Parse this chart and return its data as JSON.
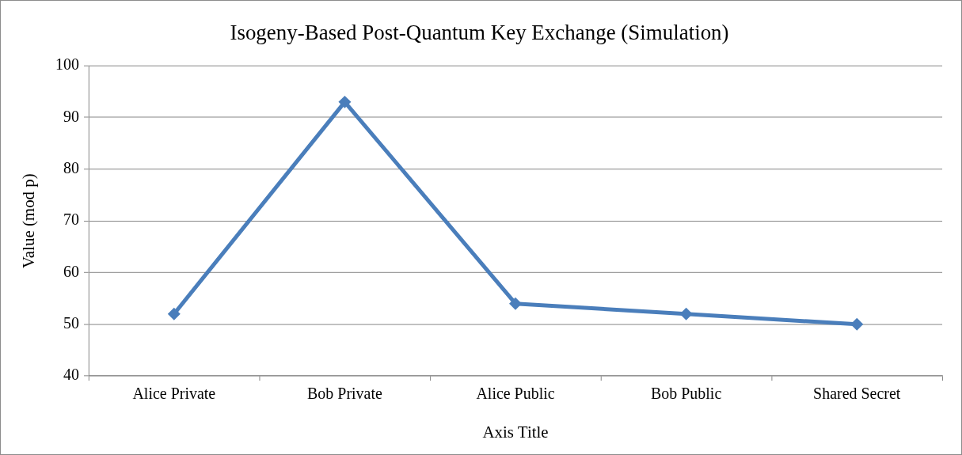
{
  "chart_data": {
    "type": "line",
    "title": "Isogeny-Based Post-Quantum Key Exchange (Simulation)",
    "xlabel": "Axis Title",
    "ylabel": "Value (mod p)",
    "categories": [
      "Alice Private",
      "Bob Private",
      "Alice Public",
      "Bob Public",
      "Shared Secret"
    ],
    "series": [
      {
        "color": "#4a7ebb",
        "values": [
          52,
          93,
          54,
          52,
          50
        ]
      }
    ],
    "ylim": [
      40,
      100
    ],
    "yticks": [
      40,
      50,
      60,
      70,
      80,
      90,
      100
    ],
    "grid": "y",
    "legend": false,
    "marker": "diamond",
    "line_style": "solid"
  }
}
